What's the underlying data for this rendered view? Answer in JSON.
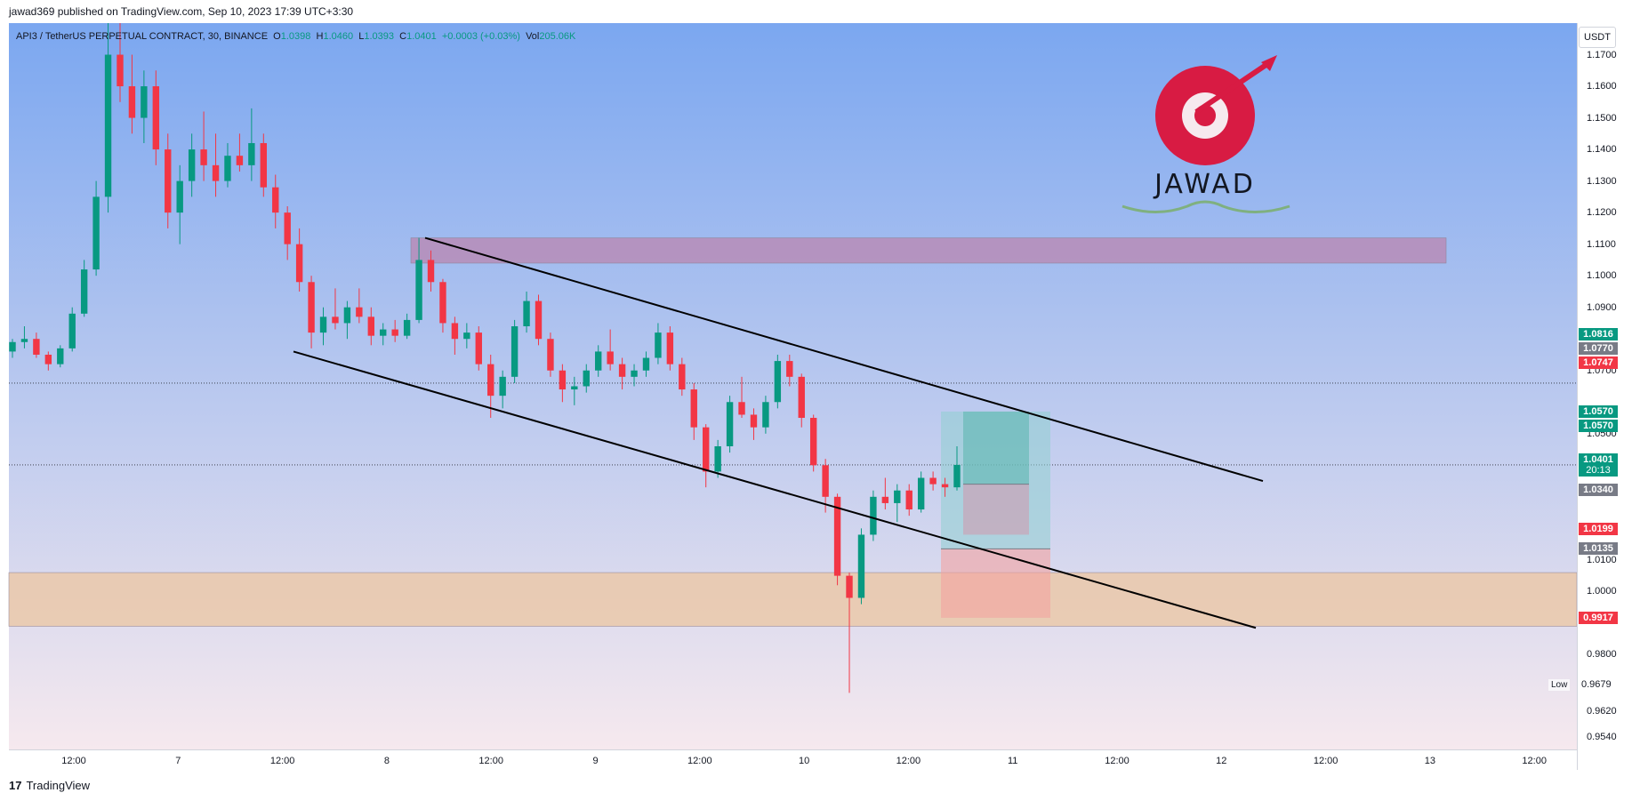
{
  "publish_line": "jawad369 published on TradingView.com, Sep 10, 2023 17:39 UTC+3:30",
  "legend": {
    "symbol": "API3 / TetherUS PERPETUAL CONTRACT, 30, BINANCE",
    "o_label": "O",
    "o": "1.0398",
    "h_label": "H",
    "h": "1.0460",
    "l_label": "L",
    "l": "1.0393",
    "c_label": "C",
    "c": "1.0401",
    "change": "+0.0003 (+0.03%)",
    "vol_label": "Vol",
    "vol": "205.06K"
  },
  "currency_button": "USDT",
  "logo_text": "JAWAD",
  "footer": {
    "logo_mark": "17",
    "brand": "TradingView"
  },
  "low_marker": {
    "tag": "Low",
    "value": "0.9679"
  },
  "colors": {
    "up": "#089981",
    "down": "#f23645",
    "bg_top": "#7ba7f0",
    "bg_bottom": "#f6e9ee"
  },
  "chart_data": {
    "type": "candlestick",
    "title": "",
    "ylim": [
      0.95,
      1.18
    ],
    "x_tick_labels": [
      "12:00",
      "7",
      "12:00",
      "8",
      "12:00",
      "9",
      "12:00",
      "10",
      "12:00",
      "11",
      "12:00",
      "12",
      "12:00",
      "13",
      "12:00"
    ],
    "y_tick_labels": [
      "1.1700",
      "1.1600",
      "1.1500",
      "1.1400",
      "1.1300",
      "1.1200",
      "1.1100",
      "1.1000",
      "1.0900",
      "1.0700",
      "1.0500",
      "1.0100",
      "1.0000",
      "0.9800",
      "0.9620",
      "0.9540"
    ],
    "price_labels": [
      {
        "value": "1.0816",
        "color": "#089981"
      },
      {
        "value": "1.0770",
        "color": "#787b86"
      },
      {
        "value": "1.0747",
        "color": "#f23645"
      },
      {
        "value": "1.0570",
        "color": "#089981"
      },
      {
        "value": "1.0570",
        "color": "#089981"
      },
      {
        "value": "1.0401",
        "color": "#089981",
        "sub": "20:13"
      },
      {
        "value": "1.0340",
        "color": "#787b86"
      },
      {
        "value": "1.0199",
        "color": "#f23645"
      },
      {
        "value": "1.0135",
        "color": "#787b86"
      },
      {
        "value": "0.9917",
        "color": "#f23645"
      }
    ],
    "zones": [
      {
        "name": "supply",
        "from": 1.104,
        "to": 1.112,
        "color": "#b98ab5"
      },
      {
        "name": "demand",
        "from": 0.989,
        "to": 1.006,
        "color": "#ecc8a6"
      }
    ],
    "channel": {
      "upper": [
        [
          0.0,
          1.112
        ],
        [
          1.0,
          1.035
        ]
      ],
      "lower": [
        [
          0.0,
          1.076
        ],
        [
          1.0,
          0.9885
        ]
      ]
    },
    "position": {
      "entry": 1.0135,
      "target": 1.057,
      "stop": 0.9917,
      "current": 1.034
    },
    "ohlc": [
      [
        1.076,
        1.08,
        1.074,
        1.079
      ],
      [
        1.079,
        1.084,
        1.077,
        1.08
      ],
      [
        1.08,
        1.082,
        1.074,
        1.075
      ],
      [
        1.075,
        1.076,
        1.07,
        1.072
      ],
      [
        1.072,
        1.078,
        1.071,
        1.077
      ],
      [
        1.077,
        1.09,
        1.076,
        1.088
      ],
      [
        1.088,
        1.105,
        1.087,
        1.102
      ],
      [
        1.102,
        1.13,
        1.1,
        1.125
      ],
      [
        1.125,
        1.18,
        1.12,
        1.17
      ],
      [
        1.17,
        1.18,
        1.155,
        1.16
      ],
      [
        1.16,
        1.17,
        1.145,
        1.15
      ],
      [
        1.15,
        1.165,
        1.142,
        1.16
      ],
      [
        1.16,
        1.165,
        1.135,
        1.14
      ],
      [
        1.14,
        1.145,
        1.115,
        1.12
      ],
      [
        1.12,
        1.135,
        1.11,
        1.13
      ],
      [
        1.13,
        1.145,
        1.125,
        1.14
      ],
      [
        1.14,
        1.152,
        1.13,
        1.135
      ],
      [
        1.135,
        1.145,
        1.125,
        1.13
      ],
      [
        1.13,
        1.142,
        1.128,
        1.138
      ],
      [
        1.138,
        1.145,
        1.133,
        1.135
      ],
      [
        1.135,
        1.153,
        1.13,
        1.142
      ],
      [
        1.142,
        1.145,
        1.125,
        1.128
      ],
      [
        1.128,
        1.132,
        1.115,
        1.12
      ],
      [
        1.12,
        1.122,
        1.105,
        1.11
      ],
      [
        1.11,
        1.115,
        1.095,
        1.098
      ],
      [
        1.098,
        1.1,
        1.077,
        1.082
      ],
      [
        1.082,
        1.09,
        1.078,
        1.087
      ],
      [
        1.087,
        1.096,
        1.083,
        1.085
      ],
      [
        1.085,
        1.092,
        1.08,
        1.09
      ],
      [
        1.09,
        1.096,
        1.085,
        1.087
      ],
      [
        1.087,
        1.09,
        1.078,
        1.081
      ],
      [
        1.081,
        1.085,
        1.078,
        1.083
      ],
      [
        1.083,
        1.086,
        1.079,
        1.081
      ],
      [
        1.081,
        1.088,
        1.08,
        1.086
      ],
      [
        1.086,
        1.112,
        1.085,
        1.105
      ],
      [
        1.105,
        1.108,
        1.095,
        1.098
      ],
      [
        1.098,
        1.099,
        1.082,
        1.085
      ],
      [
        1.085,
        1.087,
        1.075,
        1.08
      ],
      [
        1.08,
        1.085,
        1.077,
        1.082
      ],
      [
        1.082,
        1.084,
        1.07,
        1.072
      ],
      [
        1.072,
        1.075,
        1.055,
        1.062
      ],
      [
        1.062,
        1.07,
        1.058,
        1.068
      ],
      [
        1.068,
        1.086,
        1.066,
        1.084
      ],
      [
        1.084,
        1.095,
        1.082,
        1.092
      ],
      [
        1.092,
        1.094,
        1.078,
        1.08
      ],
      [
        1.08,
        1.082,
        1.068,
        1.07
      ],
      [
        1.07,
        1.072,
        1.06,
        1.064
      ],
      [
        1.064,
        1.068,
        1.059,
        1.065
      ],
      [
        1.065,
        1.072,
        1.063,
        1.07
      ],
      [
        1.07,
        1.078,
        1.068,
        1.076
      ],
      [
        1.076,
        1.083,
        1.07,
        1.072
      ],
      [
        1.072,
        1.074,
        1.064,
        1.068
      ],
      [
        1.068,
        1.072,
        1.065,
        1.07
      ],
      [
        1.07,
        1.076,
        1.068,
        1.074
      ],
      [
        1.074,
        1.085,
        1.072,
        1.082
      ],
      [
        1.082,
        1.084,
        1.07,
        1.072
      ],
      [
        1.072,
        1.074,
        1.062,
        1.064
      ],
      [
        1.064,
        1.066,
        1.048,
        1.052
      ],
      [
        1.052,
        1.053,
        1.033,
        1.038
      ],
      [
        1.038,
        1.048,
        1.036,
        1.046
      ],
      [
        1.046,
        1.062,
        1.044,
        1.06
      ],
      [
        1.06,
        1.068,
        1.055,
        1.056
      ],
      [
        1.056,
        1.058,
        1.048,
        1.052
      ],
      [
        1.052,
        1.062,
        1.05,
        1.06
      ],
      [
        1.06,
        1.075,
        1.058,
        1.073
      ],
      [
        1.073,
        1.075,
        1.065,
        1.068
      ],
      [
        1.068,
        1.069,
        1.052,
        1.055
      ],
      [
        1.055,
        1.056,
        1.038,
        1.04
      ],
      [
        1.04,
        1.042,
        1.025,
        1.03
      ],
      [
        1.03,
        1.031,
        1.002,
        1.005
      ],
      [
        1.005,
        1.006,
        0.9679,
        0.998
      ],
      [
        0.998,
        1.02,
        0.996,
        1.018
      ],
      [
        1.018,
        1.032,
        1.016,
        1.03
      ],
      [
        1.03,
        1.036,
        1.026,
        1.028
      ],
      [
        1.028,
        1.034,
        1.022,
        1.032
      ],
      [
        1.032,
        1.034,
        1.024,
        1.026
      ],
      [
        1.026,
        1.038,
        1.025,
        1.036
      ],
      [
        1.036,
        1.038,
        1.032,
        1.034
      ],
      [
        1.034,
        1.036,
        1.03,
        1.033
      ],
      [
        1.033,
        1.046,
        1.032,
        1.0401
      ]
    ]
  }
}
